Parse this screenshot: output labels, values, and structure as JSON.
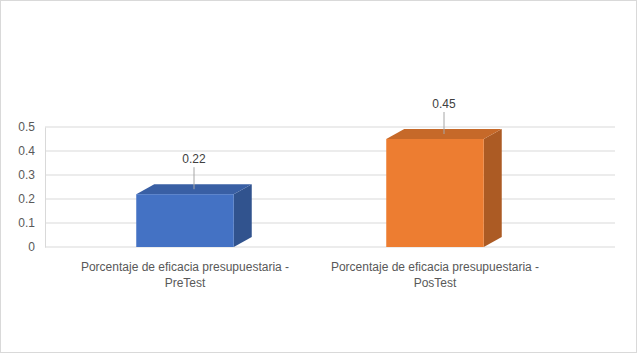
{
  "chart_data": {
    "type": "bar",
    "categories": [
      "Porcentaje de eficacia presupuestaria - PreTest",
      "Porcentaje de eficacia presupuestaria - PosTest"
    ],
    "values": [
      0.22,
      0.45
    ],
    "colors": [
      "#4472c4",
      "#ed7d31"
    ],
    "ylim": [
      0,
      0.5
    ],
    "yticks": [
      0,
      0.1,
      0.2,
      0.3,
      0.4,
      0.5
    ],
    "grid": true,
    "data_labels": true
  }
}
